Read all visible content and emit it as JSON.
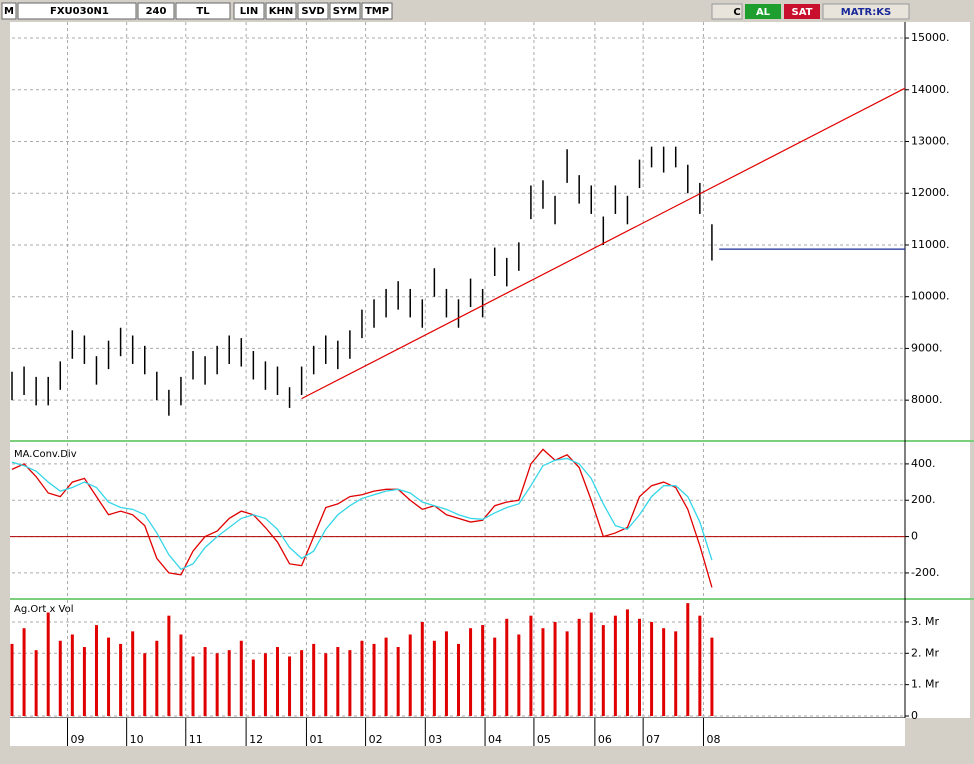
{
  "toolbar": {
    "logo": "M",
    "symbol": "FXU030N1",
    "period": "240",
    "currency": "TL",
    "buttons": [
      "LIN",
      "KHN",
      "SVD",
      "SYM",
      "TMP"
    ],
    "c": "C",
    "buy": "AL",
    "sell": "SAT",
    "account": "MATR:KS"
  },
  "chart_data": [
    {
      "type": "ohlc",
      "color": "#000000",
      "high": [
        8550,
        8650,
        8450,
        8450,
        8750,
        9350,
        9250,
        8850,
        9150,
        9400,
        9250,
        9050,
        8550,
        8200,
        8450,
        8950,
        8850,
        9050,
        9250,
        9200,
        8950,
        8750,
        8650,
        8250,
        8650,
        9050,
        9250,
        9150,
        9350,
        9750,
        9950,
        10150,
        10300,
        10150,
        9950,
        10550,
        10150,
        9950,
        10350,
        10150,
        10950,
        10750,
        11050,
        12150,
        12250,
        11950,
        12850,
        12350,
        12150,
        11550,
        12150,
        11950,
        12650,
        12900,
        12900,
        12900,
        12550,
        12200,
        11400
      ],
      "low": [
        8000,
        8100,
        7900,
        7900,
        8200,
        8800,
        8700,
        8300,
        8600,
        8850,
        8700,
        8500,
        8000,
        7700,
        7900,
        8400,
        8300,
        8500,
        8700,
        8650,
        8400,
        8200,
        8100,
        7850,
        8100,
        8500,
        8700,
        8600,
        8800,
        9200,
        9400,
        9600,
        9750,
        9600,
        9400,
        10000,
        9600,
        9400,
        9800,
        9600,
        10400,
        10200,
        10500,
        11500,
        11700,
        11400,
        12200,
        11800,
        11600,
        11000,
        11600,
        11400,
        12100,
        12500,
        12400,
        12500,
        12000,
        11600,
        10700
      ],
      "xlim": [
        0,
        74
      ],
      "xticks": [
        {
          "value": 4.6,
          "label": "09"
        },
        {
          "value": 9.5,
          "label": "10"
        },
        {
          "value": 14.4,
          "label": "11"
        },
        {
          "value": 19.4,
          "label": "12"
        },
        {
          "value": 24.4,
          "label": "01"
        },
        {
          "value": 29.3,
          "label": "02"
        },
        {
          "value": 34.25,
          "label": "03"
        },
        {
          "value": 39.2,
          "label": "04"
        },
        {
          "value": 43.25,
          "label": "05"
        },
        {
          "value": 48.3,
          "label": "06"
        },
        {
          "value": 52.3,
          "label": "07"
        },
        {
          "value": 57.3,
          "label": "08"
        }
      ],
      "ylim": [
        7230,
        15310
      ],
      "yticks": [
        {
          "value": 8000,
          "label": "8000."
        },
        {
          "value": 9000,
          "label": "9000."
        },
        {
          "value": 10000,
          "label": "10000."
        },
        {
          "value": 11000,
          "label": "11000."
        },
        {
          "value": 12000,
          "label": "12000."
        },
        {
          "value": 13000,
          "label": "13000."
        },
        {
          "value": 14000,
          "label": "14000."
        },
        {
          "value": 15000,
          "label": "15000."
        }
      ],
      "grid": true,
      "lines": [
        {
          "x": [
            24,
            74
          ],
          "y": [
            8030,
            14030
          ],
          "color": "#e00000"
        },
        {
          "x": [
            58.6,
            74
          ],
          "y": [
            10920,
            10920
          ],
          "color": "#1a2a9a"
        }
      ]
    },
    {
      "type": "line",
      "title": "MA.Conv.Div",
      "series": [
        {
          "color": "#e00000",
          "values": [
            370,
            400,
            330,
            240,
            220,
            300,
            320,
            220,
            120,
            140,
            120,
            60,
            -120,
            -200,
            -210,
            -80,
            0,
            30,
            100,
            140,
            120,
            50,
            -30,
            -150,
            -160,
            0,
            160,
            180,
            220,
            230,
            250,
            260,
            260,
            200,
            150,
            170,
            120,
            100,
            80,
            90,
            170,
            190,
            200,
            400,
            480,
            420,
            450,
            380,
            200,
            0,
            20,
            50,
            220,
            280,
            300,
            270,
            150,
            -50,
            -280
          ]
        },
        {
          "color": "#33d6e8",
          "values": [
            410,
            390,
            360,
            300,
            250,
            270,
            300,
            270,
            190,
            160,
            150,
            120,
            20,
            -100,
            -180,
            -150,
            -60,
            0,
            50,
            100,
            120,
            100,
            40,
            -60,
            -120,
            -80,
            40,
            120,
            170,
            210,
            230,
            250,
            260,
            240,
            190,
            170,
            150,
            120,
            100,
            95,
            130,
            160,
            180,
            280,
            390,
            420,
            430,
            400,
            320,
            180,
            60,
            40,
            120,
            220,
            280,
            280,
            220,
            80,
            -130
          ]
        }
      ],
      "ylim": [
        -338,
        515
      ],
      "yticks": [
        {
          "value": -200,
          "label": "-200."
        },
        0,
        {
          "value": 200,
          "label": "200."
        },
        {
          "value": 400,
          "label": "400."
        }
      ],
      "grid": true,
      "hline": 0,
      "hline_color": "#b00000"
    },
    {
      "type": "bar",
      "title": "Ag.Ort x Vol",
      "color": "#e00000",
      "values": [
        2.3,
        2.8,
        2.1,
        3.3,
        2.4,
        2.6,
        2.2,
        2.9,
        2.5,
        2.3,
        2.7,
        2.0,
        2.4,
        3.2,
        2.6,
        1.9,
        2.2,
        2.0,
        2.1,
        2.4,
        1.8,
        2.0,
        2.2,
        1.9,
        2.1,
        2.3,
        2.0,
        2.2,
        2.1,
        2.4,
        2.3,
        2.5,
        2.2,
        2.6,
        3.0,
        2.4,
        2.7,
        2.3,
        2.8,
        2.9,
        2.5,
        3.1,
        2.6,
        3.2,
        2.8,
        3.0,
        2.7,
        3.1,
        3.3,
        2.9,
        3.2,
        3.4,
        3.1,
        3.0,
        2.8,
        2.7,
        3.6,
        3.2,
        2.5
      ],
      "ylim": [
        0,
        3.7
      ],
      "yticks": [
        0,
        {
          "value": 1,
          "label": "1. Mr"
        },
        {
          "value": 2,
          "label": "2. Mr"
        },
        {
          "value": 3,
          "label": "3. Mr"
        }
      ],
      "grid": true
    }
  ]
}
